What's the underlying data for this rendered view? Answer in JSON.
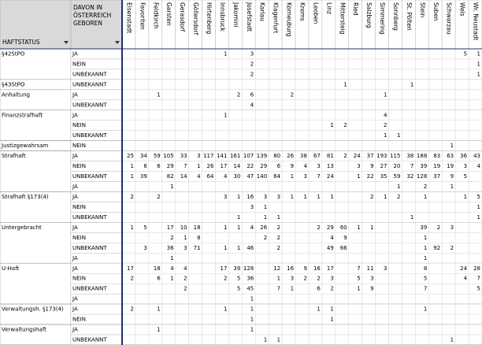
{
  "header": {
    "status": "HAFTSTATUS",
    "born": "DAVON IN ÖSTERREICH GEBOREN",
    "columns": [
      "Eisenstadt",
      "Favoriten",
      "Feldkirch",
      "Garsten",
      "Gerasdorf",
      "Göllersdorf",
      "Hirtenberg",
      "Innsbruck",
      "Jakomini",
      "Josefstadt",
      "Karlau",
      "Klagenfurt",
      "Korneuburg",
      "Krems",
      "Leoben",
      "Linz",
      "Mittersteig",
      "Ried",
      "Salzburg",
      "Simmering",
      "Sonnberg",
      "St. Pölten",
      "Stein",
      "Suben",
      "Schwarzau",
      "Wels",
      "Wr. Neustadt"
    ]
  },
  "table": {
    "groups": [
      {
        "label": "§42StPO",
        "rows": [
          {
            "label": "JA",
            "cells": [
              null,
              null,
              null,
              null,
              null,
              null,
              null,
              1,
              null,
              3,
              null,
              null,
              null,
              null,
              null,
              null,
              null,
              null,
              null,
              null,
              null,
              null,
              null,
              null,
              null,
              5,
              1
            ]
          },
          {
            "label": "NEIN",
            "cells": [
              null,
              null,
              null,
              null,
              null,
              null,
              null,
              null,
              null,
              2,
              null,
              null,
              null,
              null,
              null,
              null,
              null,
              null,
              null,
              null,
              null,
              null,
              null,
              null,
              null,
              null,
              1
            ]
          },
          {
            "label": "UNBEKANNT",
            "cells": [
              null,
              null,
              null,
              null,
              null,
              null,
              null,
              null,
              null,
              2,
              null,
              null,
              null,
              null,
              null,
              null,
              null,
              null,
              null,
              null,
              null,
              null,
              null,
              null,
              null,
              null,
              1
            ]
          }
        ]
      },
      {
        "label": "§43StPO",
        "rows": [
          {
            "label": "UNBEKANNT",
            "cells": [
              null,
              null,
              null,
              null,
              null,
              null,
              null,
              null,
              null,
              null,
              null,
              null,
              null,
              null,
              null,
              null,
              1,
              null,
              null,
              null,
              null,
              1,
              null,
              null,
              null,
              null,
              null
            ]
          }
        ]
      },
      {
        "label": "Anhaltung",
        "rows": [
          {
            "label": "JA",
            "cells": [
              null,
              null,
              1,
              null,
              null,
              null,
              null,
              null,
              2,
              6,
              null,
              null,
              2,
              null,
              null,
              null,
              null,
              null,
              null,
              1,
              null,
              null,
              null,
              null,
              null,
              null,
              null
            ]
          },
          {
            "label": "UNBEKANNT",
            "cells": [
              null,
              null,
              null,
              null,
              null,
              null,
              null,
              null,
              null,
              4,
              null,
              null,
              null,
              null,
              null,
              null,
              null,
              null,
              null,
              null,
              null,
              null,
              null,
              null,
              null,
              null,
              null
            ]
          }
        ]
      },
      {
        "label": "Finanzstrafhaft",
        "rows": [
          {
            "label": "JA",
            "cells": [
              null,
              null,
              null,
              null,
              null,
              null,
              null,
              1,
              null,
              null,
              null,
              null,
              null,
              null,
              null,
              null,
              null,
              null,
              null,
              4,
              null,
              null,
              null,
              null,
              null,
              null,
              null
            ]
          },
          {
            "label": "NEIN",
            "cells": [
              null,
              null,
              null,
              null,
              null,
              null,
              null,
              null,
              null,
              null,
              null,
              null,
              null,
              null,
              null,
              1,
              2,
              null,
              null,
              2,
              null,
              null,
              null,
              null,
              null,
              null,
              null
            ]
          },
          {
            "label": "UNBEKANNT",
            "cells": [
              null,
              null,
              null,
              null,
              null,
              null,
              null,
              null,
              null,
              null,
              null,
              null,
              null,
              null,
              null,
              null,
              null,
              null,
              null,
              1,
              1,
              null,
              null,
              null,
              null,
              null,
              null
            ]
          }
        ]
      },
      {
        "label": "Justizgewahrsam",
        "rows": [
          {
            "label": "NEIN",
            "cells": [
              null,
              null,
              null,
              null,
              null,
              null,
              null,
              null,
              null,
              null,
              null,
              null,
              null,
              null,
              null,
              null,
              null,
              null,
              null,
              null,
              null,
              null,
              null,
              null,
              1,
              null,
              null
            ]
          }
        ]
      },
      {
        "label": "Strafhaft",
        "rows": [
          {
            "label": "JA",
            "cells": [
              25,
              34,
              59,
              105,
              33,
              3,
              117,
              141,
              161,
              107,
              139,
              80,
              26,
              38,
              67,
              81,
              2,
              24,
              37,
              193,
              115,
              38,
              188,
              83,
              63,
              36,
              43
            ]
          },
          {
            "label": "NEIN",
            "cells": [
              1,
              6,
              6,
              29,
              7,
              1,
              26,
              17,
              14,
              22,
              29,
              6,
              9,
              4,
              3,
              13,
              null,
              3,
              9,
              27,
              20,
              7,
              39,
              19,
              19,
              3,
              4
            ]
          },
          {
            "label": "UNBEKANNT",
            "cells": [
              1,
              39,
              null,
              82,
              14,
              4,
              64,
              4,
              30,
              47,
              140,
              64,
              1,
              3,
              7,
              24,
              null,
              1,
              22,
              35,
              59,
              32,
              128,
              37,
              9,
              5,
              null
            ]
          },
          {
            "label": "JA",
            "cells": [
              null,
              null,
              null,
              1,
              null,
              null,
              null,
              null,
              null,
              null,
              null,
              null,
              null,
              null,
              null,
              null,
              null,
              null,
              null,
              null,
              1,
              null,
              2,
              null,
              1,
              null,
              null
            ]
          }
        ]
      },
      {
        "label": "Strafhaft §173(4)",
        "rows": [
          {
            "label": "JA",
            "cells": [
              2,
              null,
              2,
              null,
              null,
              null,
              null,
              3,
              1,
              16,
              3,
              3,
              1,
              1,
              1,
              1,
              null,
              null,
              2,
              1,
              2,
              null,
              1,
              null,
              null,
              1,
              5
            ]
          },
          {
            "label": "NEIN",
            "cells": [
              null,
              null,
              null,
              null,
              null,
              null,
              null,
              null,
              null,
              3,
              1,
              null,
              null,
              null,
              null,
              null,
              null,
              null,
              null,
              null,
              null,
              null,
              null,
              null,
              null,
              null,
              1
            ]
          },
          {
            "label": "UNBEKANNT",
            "cells": [
              null,
              null,
              null,
              null,
              null,
              null,
              null,
              null,
              1,
              null,
              1,
              1,
              null,
              null,
              null,
              null,
              null,
              null,
              null,
              null,
              null,
              1,
              null,
              null,
              null,
              null,
              1
            ]
          }
        ]
      },
      {
        "label": "Untergebracht",
        "rows": [
          {
            "label": "JA",
            "cells": [
              1,
              5,
              null,
              17,
              10,
              18,
              null,
              1,
              1,
              4,
              26,
              2,
              null,
              null,
              2,
              29,
              60,
              1,
              1,
              null,
              null,
              null,
              39,
              2,
              3,
              null,
              null
            ]
          },
          {
            "label": "NEIN",
            "cells": [
              null,
              null,
              null,
              2,
              1,
              8,
              null,
              null,
              null,
              null,
              2,
              2,
              null,
              null,
              null,
              4,
              9,
              null,
              null,
              null,
              null,
              null,
              1,
              null,
              null,
              null,
              null
            ]
          },
          {
            "label": "UNBEKANNT",
            "cells": [
              null,
              3,
              null,
              36,
              3,
              71,
              null,
              1,
              1,
              46,
              null,
              2,
              null,
              null,
              null,
              49,
              66,
              null,
              null,
              null,
              null,
              null,
              1,
              92,
              2,
              null,
              null
            ]
          },
          {
            "label": "JA",
            "cells": [
              null,
              null,
              null,
              1,
              null,
              null,
              null,
              null,
              null,
              null,
              null,
              null,
              null,
              null,
              null,
              null,
              null,
              null,
              null,
              null,
              null,
              null,
              1,
              null,
              null,
              null,
              null
            ]
          }
        ]
      },
      {
        "label": "U-Haft",
        "rows": [
          {
            "label": "JA",
            "cells": [
              17,
              null,
              18,
              4,
              4,
              null,
              null,
              17,
              39,
              128,
              null,
              12,
              16,
              9,
              16,
              17,
              null,
              7,
              11,
              3,
              null,
              null,
              8,
              null,
              null,
              24,
              28
            ]
          },
          {
            "label": "NEIN",
            "cells": [
              2,
              null,
              6,
              1,
              2,
              null,
              null,
              2,
              5,
              36,
              null,
              1,
              3,
              2,
              2,
              3,
              null,
              5,
              3,
              null,
              null,
              null,
              5,
              null,
              null,
              4,
              7
            ]
          },
          {
            "label": "UNBEKANNT",
            "cells": [
              null,
              null,
              null,
              null,
              2,
              null,
              null,
              null,
              5,
              45,
              null,
              7,
              1,
              null,
              6,
              2,
              null,
              1,
              9,
              null,
              null,
              null,
              7,
              null,
              null,
              null,
              5
            ]
          },
          {
            "label": "JA",
            "cells": [
              null,
              null,
              null,
              null,
              null,
              null,
              null,
              null,
              null,
              1,
              null,
              null,
              null,
              null,
              null,
              null,
              null,
              null,
              null,
              null,
              null,
              null,
              null,
              null,
              null,
              null,
              null
            ]
          }
        ]
      },
      {
        "label": "Verwaltungsh. §173(4)",
        "rows": [
          {
            "label": "JA",
            "cells": [
              2,
              null,
              1,
              null,
              null,
              null,
              null,
              1,
              null,
              1,
              null,
              null,
              null,
              null,
              1,
              1,
              null,
              null,
              null,
              null,
              null,
              null,
              1,
              null,
              null,
              null,
              null
            ]
          },
          {
            "label": "NEIN",
            "cells": [
              null,
              null,
              null,
              null,
              null,
              null,
              null,
              null,
              null,
              1,
              null,
              null,
              null,
              null,
              null,
              1,
              null,
              null,
              null,
              null,
              null,
              null,
              null,
              null,
              null,
              null,
              null
            ]
          }
        ]
      },
      {
        "label": "Verwaltungshaft",
        "rows": [
          {
            "label": "JA",
            "cells": [
              null,
              null,
              1,
              null,
              null,
              null,
              null,
              null,
              null,
              1,
              null,
              null,
              null,
              null,
              null,
              null,
              null,
              null,
              null,
              null,
              null,
              null,
              null,
              null,
              null,
              null,
              null
            ]
          },
          {
            "label": "UNBEKANNT",
            "cells": [
              null,
              null,
              null,
              null,
              null,
              null,
              null,
              null,
              null,
              null,
              1,
              1,
              null,
              null,
              null,
              null,
              null,
              null,
              null,
              null,
              null,
              null,
              null,
              null,
              1,
              null,
              null
            ]
          }
        ]
      }
    ]
  }
}
